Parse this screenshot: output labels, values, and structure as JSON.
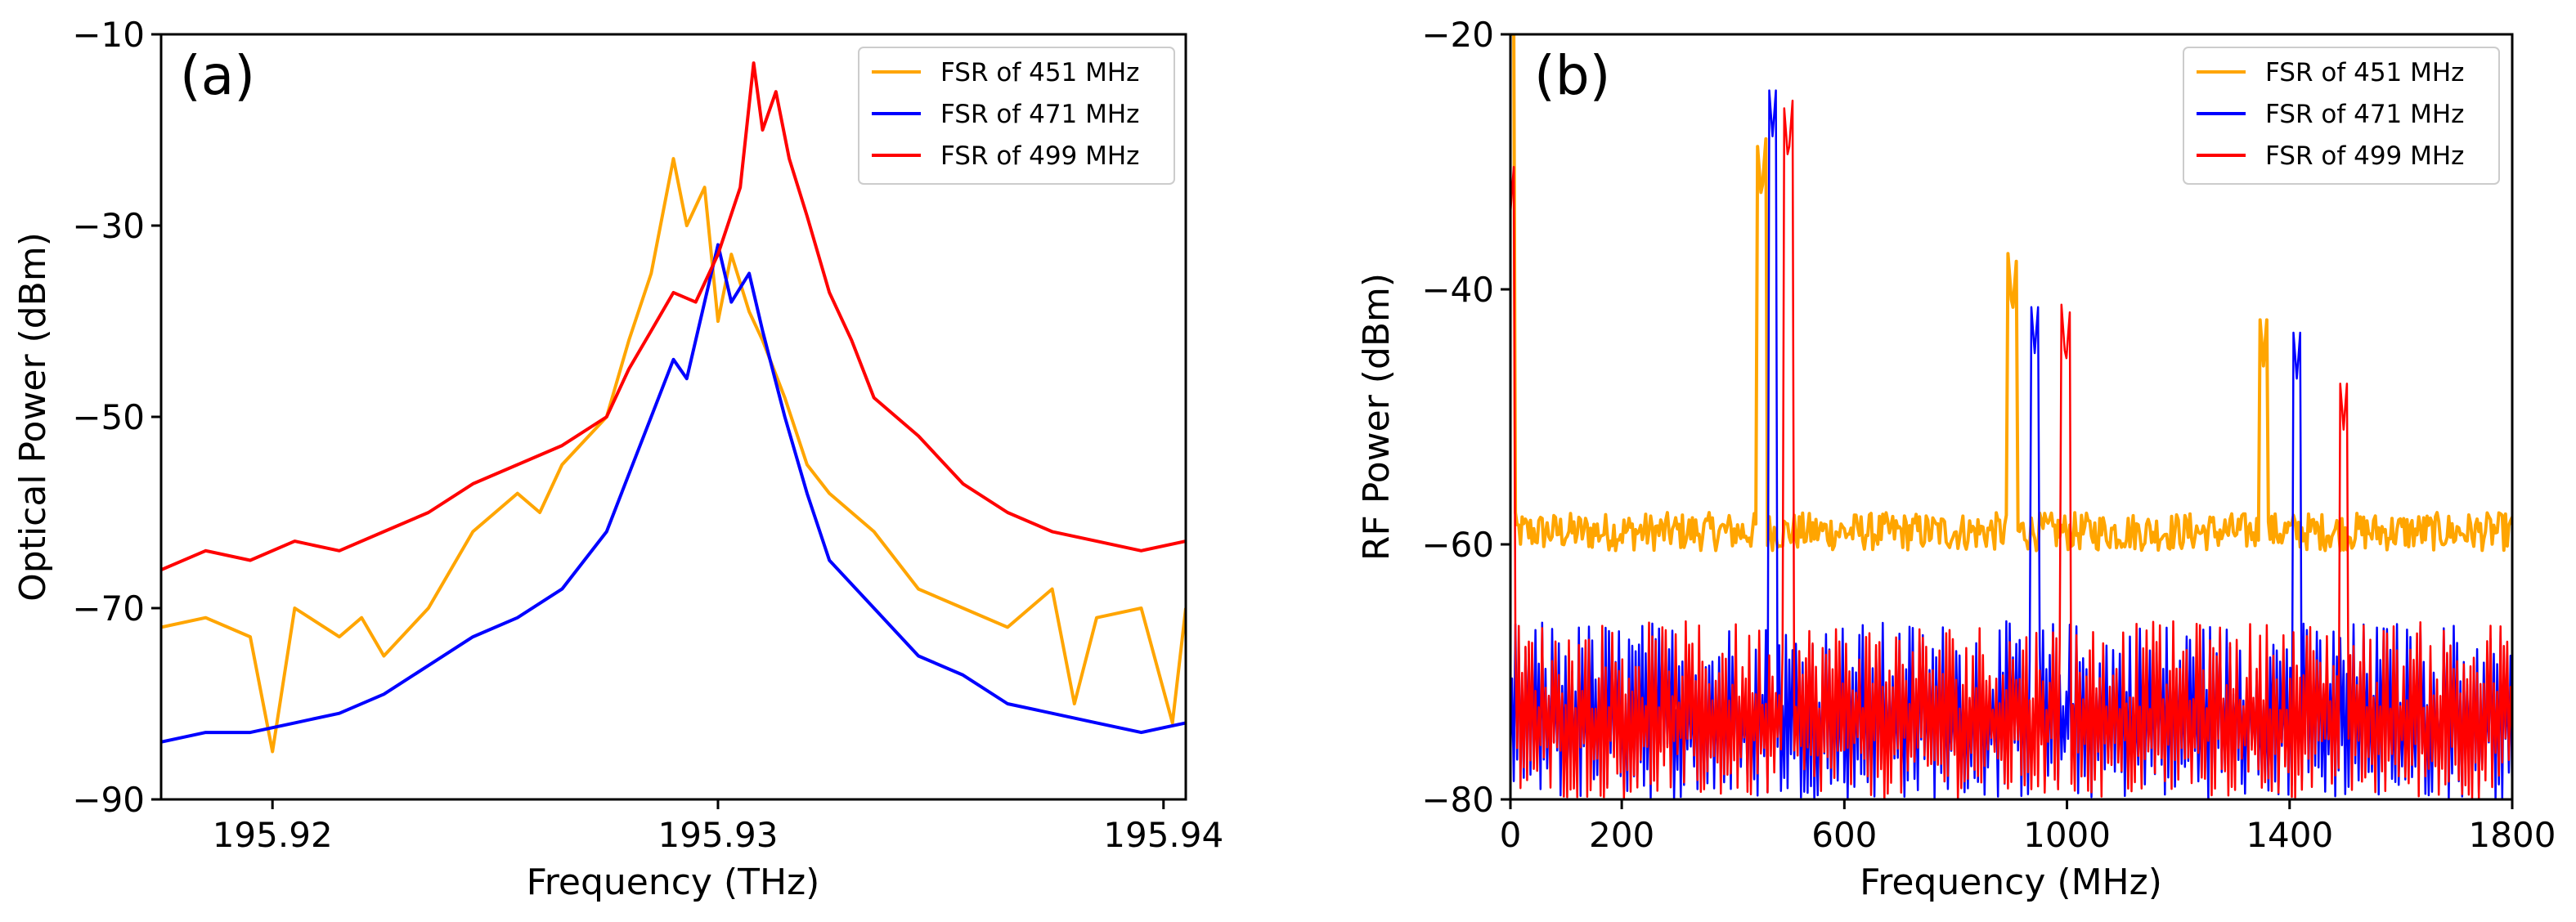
{
  "chart_data": [
    {
      "type": "line",
      "panel_label": "(a)",
      "xlabel": "Frequency (THz)",
      "ylabel": "Optical Power (dBm)",
      "xlim": [
        195.9175,
        195.9405
      ],
      "ylim": [
        -90,
        -10
      ],
      "xticks": [
        195.92,
        195.93,
        195.94
      ],
      "xtick_labels": [
        "195.92",
        "195.93",
        "195.94"
      ],
      "yticks": [
        -90,
        -70,
        -50,
        -30,
        -10
      ],
      "ytick_labels": [
        "−90",
        "−70",
        "−50",
        "−30",
        "−10"
      ],
      "grid": false,
      "legend_position": "top-right",
      "series": [
        {
          "name": "FSR of 451 MHz",
          "color": "#ffa500",
          "x": [
            195.9175,
            195.9185,
            195.9195,
            195.92,
            195.9205,
            195.9215,
            195.922,
            195.9225,
            195.9235,
            195.9245,
            195.9255,
            195.926,
            195.9265,
            195.9275,
            195.928,
            195.9285,
            195.929,
            195.9293,
            195.9297,
            195.93,
            195.9303,
            195.9307,
            195.931,
            195.9315,
            195.932,
            195.9325,
            195.9335,
            195.9345,
            195.9355,
            195.9365,
            195.9375,
            195.938,
            195.9385,
            195.9395,
            195.9402,
            195.9405
          ],
          "y": [
            -72,
            -71,
            -73,
            -85,
            -70,
            -73,
            -71,
            -75,
            -70,
            -62,
            -58,
            -60,
            -55,
            -50,
            -42,
            -35,
            -23,
            -30,
            -26,
            -40,
            -33,
            -39,
            -42,
            -48,
            -55,
            -58,
            -62,
            -68,
            -70,
            -72,
            -68,
            -80,
            -71,
            -70,
            -82,
            -70
          ]
        },
        {
          "name": "FSR of 471 MHz",
          "color": "#0000ff",
          "x": [
            195.9175,
            195.9185,
            195.9195,
            195.9205,
            195.9215,
            195.9225,
            195.9235,
            195.9245,
            195.9255,
            195.9265,
            195.9275,
            195.928,
            195.9285,
            195.929,
            195.9293,
            195.9297,
            195.93,
            195.9303,
            195.9307,
            195.931,
            195.9315,
            195.932,
            195.9325,
            195.9335,
            195.9345,
            195.9355,
            195.9365,
            195.9375,
            195.9385,
            195.9395,
            195.9405
          ],
          "y": [
            -84,
            -83,
            -83,
            -82,
            -81,
            -79,
            -76,
            -73,
            -71,
            -68,
            -62,
            -56,
            -50,
            -44,
            -46,
            -38,
            -32,
            -38,
            -35,
            -41,
            -50,
            -58,
            -65,
            -70,
            -75,
            -77,
            -80,
            -81,
            -82,
            -83,
            -82
          ]
        },
        {
          "name": "FSR of 499 MHz",
          "color": "#ff0000",
          "x": [
            195.9175,
            195.9185,
            195.9195,
            195.9205,
            195.9215,
            195.9225,
            195.9235,
            195.9245,
            195.9255,
            195.9265,
            195.9275,
            195.928,
            195.9285,
            195.929,
            195.9295,
            195.93,
            195.9305,
            195.9308,
            195.931,
            195.9313,
            195.9316,
            195.932,
            195.9325,
            195.933,
            195.9335,
            195.9345,
            195.9355,
            195.9365,
            195.9375,
            195.9385,
            195.9395,
            195.9405
          ],
          "y": [
            -66,
            -64,
            -65,
            -63,
            -64,
            -62,
            -60,
            -57,
            -55,
            -53,
            -50,
            -45,
            -41,
            -37,
            -38,
            -33,
            -26,
            -13,
            -20,
            -16,
            -23,
            -29,
            -37,
            -42,
            -48,
            -52,
            -57,
            -60,
            -62,
            -63,
            -64,
            -63
          ]
        }
      ]
    },
    {
      "type": "line",
      "panel_label": "(b)",
      "xlabel": "Frequency (MHz)",
      "ylabel": "RF Power (dBm)",
      "xlim": [
        0,
        1800
      ],
      "ylim": [
        -80,
        -20
      ],
      "xticks": [
        0,
        200,
        600,
        1000,
        1400,
        1800
      ],
      "xtick_labels": [
        "0",
        "200",
        "600",
        "1000",
        "1400",
        "1800"
      ],
      "yticks": [
        -80,
        -60,
        -40,
        -20
      ],
      "ytick_labels": [
        "−80",
        "−60",
        "−40",
        "−20"
      ],
      "grid": false,
      "legend_position": "top-right",
      "series": [
        {
          "name": "FSR of 451 MHz",
          "color": "#ffa500",
          "baseline": -59,
          "peaks": [
            [
              0,
              -20
            ],
            [
              451,
              -33
            ],
            [
              902,
              -42
            ],
            [
              1353,
              -46
            ]
          ]
        },
        {
          "name": "FSR of 471 MHz",
          "color": "#0000ff",
          "noise_floor_range": [
            -80,
            -66
          ],
          "peaks": [
            [
              471,
              -28
            ],
            [
              942,
              -45
            ],
            [
              1413,
              -47
            ]
          ]
        },
        {
          "name": "FSR of 499 MHz",
          "color": "#ff0000",
          "noise_floor_range": [
            -80,
            -66
          ],
          "peaks": [
            [
              0,
              -34
            ],
            [
              499,
              -30
            ],
            [
              998,
              -46
            ],
            [
              1497,
              -51
            ]
          ]
        }
      ]
    }
  ]
}
